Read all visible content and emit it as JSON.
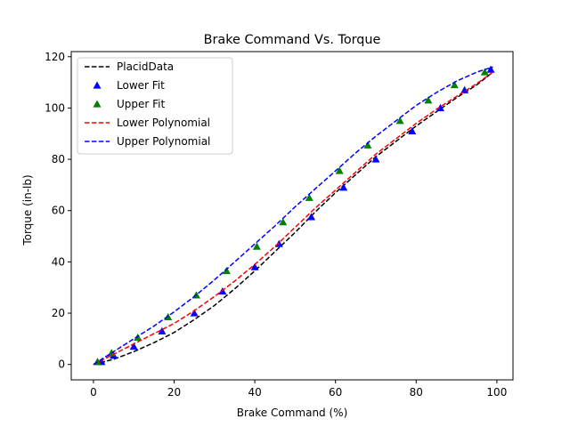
{
  "chart_data": {
    "type": "line",
    "title": "Brake Command Vs. Torque",
    "xlabel": "Brake Command (%)",
    "ylabel": "Torque (in-lb)",
    "xlim": [
      -5.5,
      104
    ],
    "ylim": [
      -6,
      122
    ],
    "x_ticks": [
      0,
      20,
      40,
      60,
      80,
      100
    ],
    "y_ticks": [
      0,
      20,
      40,
      60,
      80,
      100,
      120
    ],
    "grid": false,
    "legend_position": "upper-left",
    "series": [
      {
        "name": "PlacidData",
        "style": "dashed",
        "color": "#000000",
        "x": [
          0,
          5,
          10,
          15,
          20,
          25,
          30,
          35,
          40,
          45,
          50,
          55,
          60,
          65,
          70,
          75,
          80,
          85,
          90,
          95,
          99
        ],
        "y": [
          0,
          2,
          5,
          8.5,
          12.5,
          17.5,
          23,
          29.5,
          36.5,
          44,
          51.5,
          59.5,
          67,
          74,
          81,
          87,
          93,
          98.5,
          104,
          109,
          114
        ]
      },
      {
        "name": "Lower Fit",
        "style": "triangle-marker",
        "color": "#0000ff",
        "x": [
          1,
          2,
          5,
          10,
          17,
          25,
          32,
          40,
          46,
          54,
          62,
          70,
          79,
          86,
          92,
          98.5
        ],
        "y": [
          1,
          1,
          3.5,
          7,
          13,
          20,
          28.5,
          38,
          47,
          57.5,
          69,
          80,
          91,
          100,
          107,
          115
        ]
      },
      {
        "name": "Upper Fit",
        "style": "triangle-marker",
        "color": "#008000",
        "x": [
          1,
          4.5,
          11,
          18.5,
          25.5,
          33,
          40.5,
          47,
          53.5,
          61,
          68,
          76,
          83,
          89.5,
          97
        ],
        "y": [
          1,
          4.5,
          10.5,
          18.5,
          27,
          36.5,
          46,
          55.5,
          65,
          75.5,
          85.5,
          95,
          103,
          109,
          114
        ]
      },
      {
        "name": "Lower Polynomial",
        "style": "dashed",
        "color": "#ff0000",
        "x": [
          0,
          5,
          10,
          15,
          20,
          25,
          30,
          35,
          40,
          45,
          50,
          55,
          60,
          65,
          70,
          75,
          80,
          85,
          90,
          95,
          99
        ],
        "y": [
          0,
          4,
          8,
          12,
          16,
          21,
          26.5,
          32.5,
          39,
          46,
          53.5,
          61,
          68,
          75,
          82,
          88,
          94,
          99.5,
          104.5,
          109.5,
          114
        ]
      },
      {
        "name": "Upper Polynomial",
        "style": "dashed",
        "color": "#0000ff",
        "x": [
          0,
          5,
          10,
          15,
          20,
          25,
          30,
          35,
          40,
          45,
          50,
          55,
          60,
          65,
          70,
          75,
          80,
          85,
          90,
          95,
          99
        ],
        "y": [
          0,
          5,
          10,
          15,
          20.5,
          26.5,
          33,
          40,
          47,
          54,
          61.5,
          68.5,
          75.5,
          82.5,
          89,
          95,
          101,
          106,
          110.5,
          114,
          116
        ]
      }
    ]
  }
}
